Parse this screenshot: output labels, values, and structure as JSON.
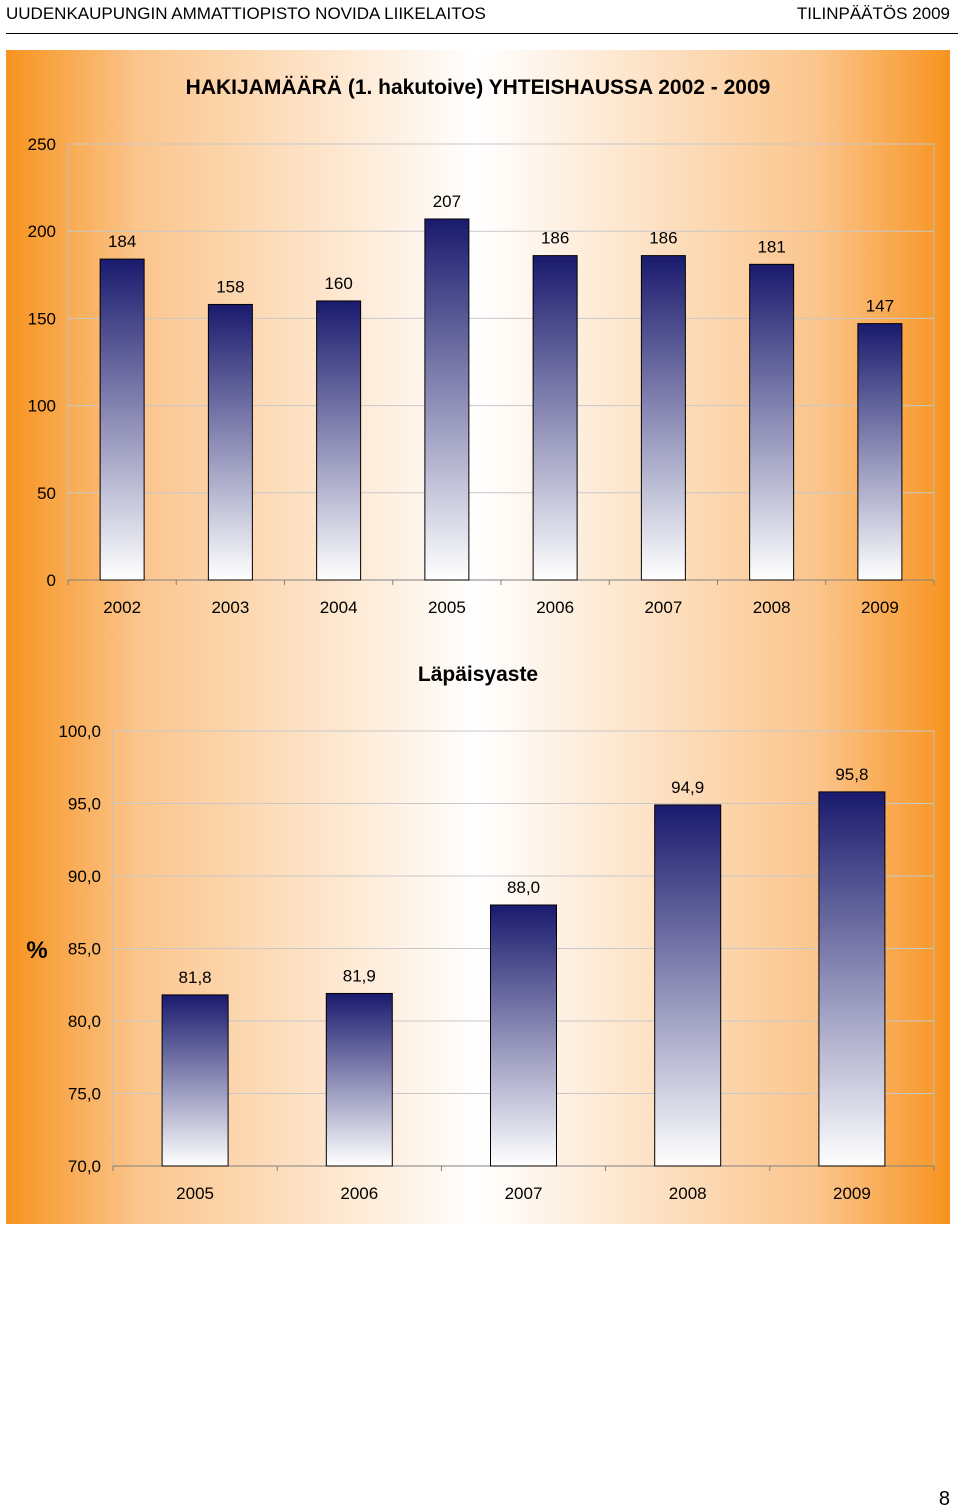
{
  "header": {
    "left_text": "UUDENKAUPUNGIN AMMATTIOPISTO NOVIDA LIIKELAITOS",
    "right_text": "TILINPÄÄTÖS 2009"
  },
  "page_number": "8",
  "colors": {
    "bar_top": "#1a1a6e",
    "bar_bottom": "#ffffff",
    "panel_edge": "#f7931e",
    "panel_center": "#ffffff"
  },
  "chart_data": [
    {
      "type": "bar",
      "title": "HAKIJAMÄÄRÄ (1. hakutoive) YHTEISHAUSSA 2002 - 2009",
      "xlabel": "",
      "ylabel": "",
      "categories": [
        "2002",
        "2003",
        "2004",
        "2005",
        "2006",
        "2007",
        "2008",
        "2009"
      ],
      "values": [
        184,
        158,
        160,
        207,
        186,
        186,
        181,
        147
      ],
      "data_labels": [
        "184",
        "158",
        "160",
        "207",
        "186",
        "186",
        "181",
        "147"
      ],
      "ylim": [
        0,
        250
      ],
      "yticks": [
        0,
        50,
        100,
        150,
        200,
        250
      ],
      "ytick_labels": [
        "0",
        "50",
        "100",
        "150",
        "200",
        "250"
      ],
      "grid": true,
      "legend": "none"
    },
    {
      "type": "bar",
      "title": "Läpäisyaste",
      "xlabel": "",
      "ylabel": "%",
      "categories": [
        "2005",
        "2006",
        "2007",
        "2008",
        "2009"
      ],
      "values": [
        81.8,
        81.9,
        88.0,
        94.9,
        95.8
      ],
      "data_labels": [
        "81,8",
        "81,9",
        "88,0",
        "94,9",
        "95,8"
      ],
      "ylim": [
        70,
        100
      ],
      "yticks": [
        70,
        75,
        80,
        85,
        90,
        95,
        100
      ],
      "ytick_labels": [
        "70,0",
        "75,0",
        "80,0",
        "85,0",
        "90,0",
        "95,0",
        "100,0"
      ],
      "grid": true,
      "legend": "none"
    }
  ]
}
